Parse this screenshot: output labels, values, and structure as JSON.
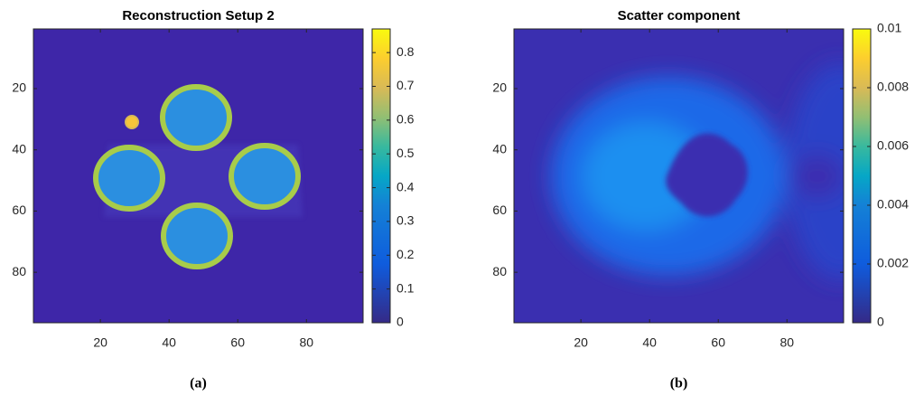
{
  "chart_data": [
    {
      "type": "heatmap",
      "title": "Reconstruction Setup 2",
      "caption": "(a)",
      "xlim": [
        0.5,
        96.5
      ],
      "xticks": [
        20,
        40,
        60,
        80
      ],
      "ylim": [
        0.5,
        96.5
      ],
      "yticks": [
        20,
        40,
        60,
        80
      ],
      "y_reversed": true,
      "clim": [
        0,
        0.87
      ],
      "cticks": [
        0,
        0.1,
        0.2,
        0.3,
        0.4,
        0.5,
        0.6,
        0.7,
        0.8
      ],
      "colormap": "parula"
    },
    {
      "type": "heatmap",
      "title": "Scatter component",
      "caption": "(b)",
      "xlim": [
        0.5,
        96.5
      ],
      "xticks": [
        20,
        40,
        60,
        80
      ],
      "ylim": [
        0.5,
        96.5
      ],
      "yticks": [
        20,
        40,
        60,
        80
      ],
      "y_reversed": true,
      "clim": [
        0,
        0.01
      ],
      "cticks": [
        0,
        0.002,
        0.004,
        0.006,
        0.008,
        0.01
      ],
      "colormap": "parula"
    }
  ]
}
